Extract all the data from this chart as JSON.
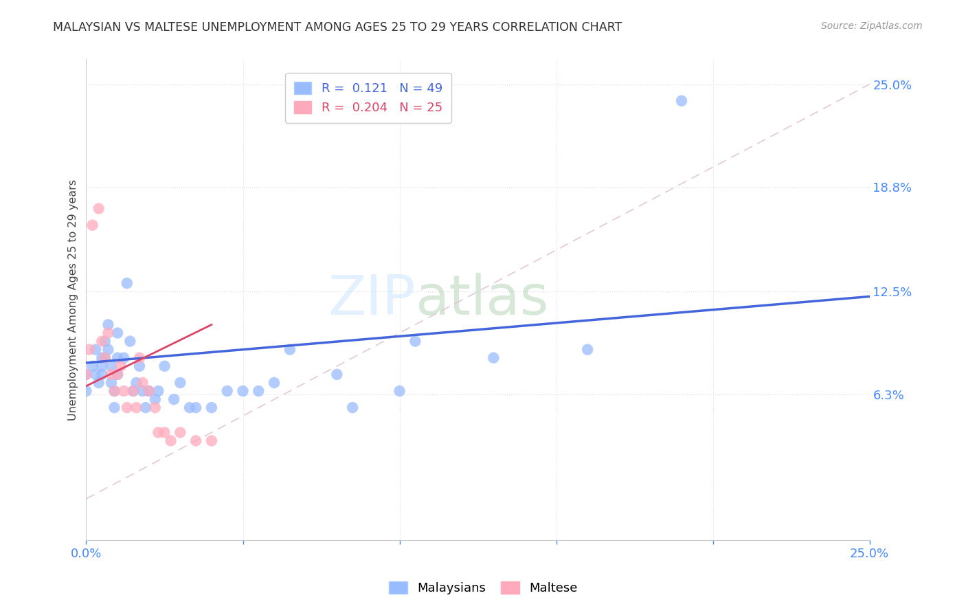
{
  "title": "MALAYSIAN VS MALTESE UNEMPLOYMENT AMONG AGES 25 TO 29 YEARS CORRELATION CHART",
  "source": "Source: ZipAtlas.com",
  "ylabel": "Unemployment Among Ages 25 to 29 years",
  "xlim": [
    0.0,
    0.25
  ],
  "ylim": [
    -0.025,
    0.265
  ],
  "y_tick_labels_right": [
    "25.0%",
    "18.8%",
    "12.5%",
    "6.3%"
  ],
  "y_tick_values_right": [
    0.25,
    0.188,
    0.125,
    0.063
  ],
  "legend_blue_R": "0.121",
  "legend_blue_N": "49",
  "legend_pink_R": "0.204",
  "legend_pink_N": "25",
  "blue_color": "#99BBFF",
  "pink_color": "#FFAABC",
  "blue_line_color": "#4466DD",
  "pink_line_color": "#DD4466",
  "diag_line_color": "#DDBBCC",
  "background_color": "#FFFFFF",
  "watermark_zip": "ZIP",
  "watermark_atlas": "atlas",
  "malaysian_x": [
    0.0,
    0.0,
    0.002,
    0.003,
    0.003,
    0.004,
    0.005,
    0.005,
    0.005,
    0.006,
    0.006,
    0.007,
    0.007,
    0.008,
    0.008,
    0.009,
    0.009,
    0.01,
    0.01,
    0.01,
    0.012,
    0.013,
    0.014,
    0.015,
    0.016,
    0.017,
    0.018,
    0.019,
    0.02,
    0.022,
    0.023,
    0.025,
    0.028,
    0.03,
    0.033,
    0.035,
    0.04,
    0.045,
    0.05,
    0.055,
    0.06,
    0.065,
    0.08,
    0.085,
    0.1,
    0.105,
    0.13,
    0.16,
    0.19
  ],
  "malaysian_y": [
    0.075,
    0.065,
    0.08,
    0.09,
    0.075,
    0.07,
    0.085,
    0.08,
    0.075,
    0.095,
    0.085,
    0.105,
    0.09,
    0.08,
    0.07,
    0.065,
    0.055,
    0.1,
    0.085,
    0.075,
    0.085,
    0.13,
    0.095,
    0.065,
    0.07,
    0.08,
    0.065,
    0.055,
    0.065,
    0.06,
    0.065,
    0.08,
    0.06,
    0.07,
    0.055,
    0.055,
    0.055,
    0.065,
    0.065,
    0.065,
    0.07,
    0.09,
    0.075,
    0.055,
    0.065,
    0.095,
    0.085,
    0.09,
    0.24
  ],
  "maltese_x": [
    0.0,
    0.001,
    0.002,
    0.004,
    0.005,
    0.006,
    0.007,
    0.008,
    0.009,
    0.01,
    0.011,
    0.012,
    0.013,
    0.015,
    0.016,
    0.017,
    0.018,
    0.02,
    0.022,
    0.023,
    0.025,
    0.027,
    0.03,
    0.035,
    0.04
  ],
  "maltese_y": [
    0.075,
    0.09,
    0.165,
    0.175,
    0.095,
    0.085,
    0.1,
    0.075,
    0.065,
    0.075,
    0.08,
    0.065,
    0.055,
    0.065,
    0.055,
    0.085,
    0.07,
    0.065,
    0.055,
    0.04,
    0.04,
    0.035,
    0.04,
    0.035,
    0.035
  ],
  "blue_line_x": [
    0.0,
    0.25
  ],
  "blue_line_y": [
    0.082,
    0.122
  ],
  "pink_line_x": [
    0.0,
    0.04
  ],
  "pink_line_y": [
    0.068,
    0.105
  ]
}
